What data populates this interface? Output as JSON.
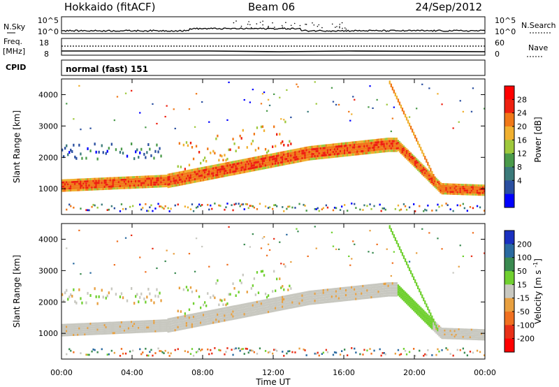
{
  "header": {
    "station": "Hokkaido (fitACF)",
    "beam": "Beam 06",
    "date": "24/Sep/2012"
  },
  "top_panels": {
    "nsky_label": "N.Sky",
    "nsky_ticks": [
      "10^5",
      "10^0"
    ],
    "nsearch_label": "N.Search",
    "freq_label_1": "Freq.",
    "freq_label_2": "[MHz]",
    "freq_ticks": [
      "18",
      "8"
    ],
    "nave_label": "Nave",
    "nave_ticks": [
      "60",
      "0"
    ],
    "cpid_label": "CPID",
    "cpid_value": "normal (fast) 151"
  },
  "chart_data": [
    {
      "type": "heatmap",
      "title": "",
      "ylabel": "Slant Range [km]",
      "xlabel": "",
      "xlim": [
        "00:00",
        "24:00"
      ],
      "ylim": [
        180,
        4500
      ],
      "x_ticks": [
        "00:00",
        "04:00",
        "08:00",
        "12:00",
        "16:00",
        "20:00",
        "00:00"
      ],
      "y_ticks": [
        1000,
        2000,
        3000,
        4000
      ],
      "colorbar": {
        "label": "Power [dB]",
        "ticks": [
          4,
          8,
          12,
          16,
          20,
          24,
          28
        ],
        "range": [
          0,
          32
        ],
        "colors": [
          "#0000ff",
          "#2a4fa0",
          "#3b7a7a",
          "#4a9a4a",
          "#9ec83c",
          "#f0b030",
          "#f07818",
          "#ee2010",
          "#ff0000"
        ]
      },
      "features": [
        {
          "desc": "main echo band",
          "time_range_h": [
            0,
            19
          ],
          "range_km_start": [
            900,
            1300
          ],
          "range_km_end": [
            2200,
            2600
          ],
          "power_db": 26
        },
        {
          "desc": "descending echo",
          "time_range_h": [
            19,
            24
          ],
          "range_km": [
            2400,
            900
          ],
          "power_db": 24
        },
        {
          "desc": "diagonal streaks",
          "time_range_h": [
            6.5,
            13
          ],
          "range_km": [
            1500,
            3400
          ],
          "power_db": 22
        },
        {
          "desc": "low-power patches",
          "time_range_h": [
            0,
            6
          ],
          "range_km": [
            1900,
            2500
          ],
          "power_db": 6
        }
      ]
    },
    {
      "type": "heatmap",
      "title": "",
      "ylabel": "Slant Range [km]",
      "xlabel": "Time UT",
      "xlim": [
        "00:00",
        "24:00"
      ],
      "ylim": [
        180,
        4500
      ],
      "x_ticks": [
        "00:00",
        "04:00",
        "08:00",
        "12:00",
        "16:00",
        "20:00",
        "00:00"
      ],
      "y_ticks": [
        1000,
        2000,
        3000,
        4000
      ],
      "colorbar": {
        "label": "Velocity [m s^-1]",
        "ticks": [
          200,
          100,
          50,
          15,
          -15,
          -50,
          -100,
          -200
        ],
        "colors": [
          "#1a30c0",
          "#2a6aa0",
          "#3a8a50",
          "#70d030",
          "#c8c8c0",
          "#e8a040",
          "#f07020",
          "#e83018",
          "#ff0000"
        ]
      },
      "features": [
        {
          "desc": "ground scatter band",
          "time_range_h": [
            0,
            19
          ],
          "range_km_start": [
            900,
            1300
          ],
          "range_km_end": [
            2200,
            2600
          ],
          "velocity": 0
        },
        {
          "desc": "descending echo",
          "time_range_h": [
            19,
            21
          ],
          "range_km": [
            2600,
            900
          ],
          "velocity": 30
        }
      ]
    }
  ]
}
